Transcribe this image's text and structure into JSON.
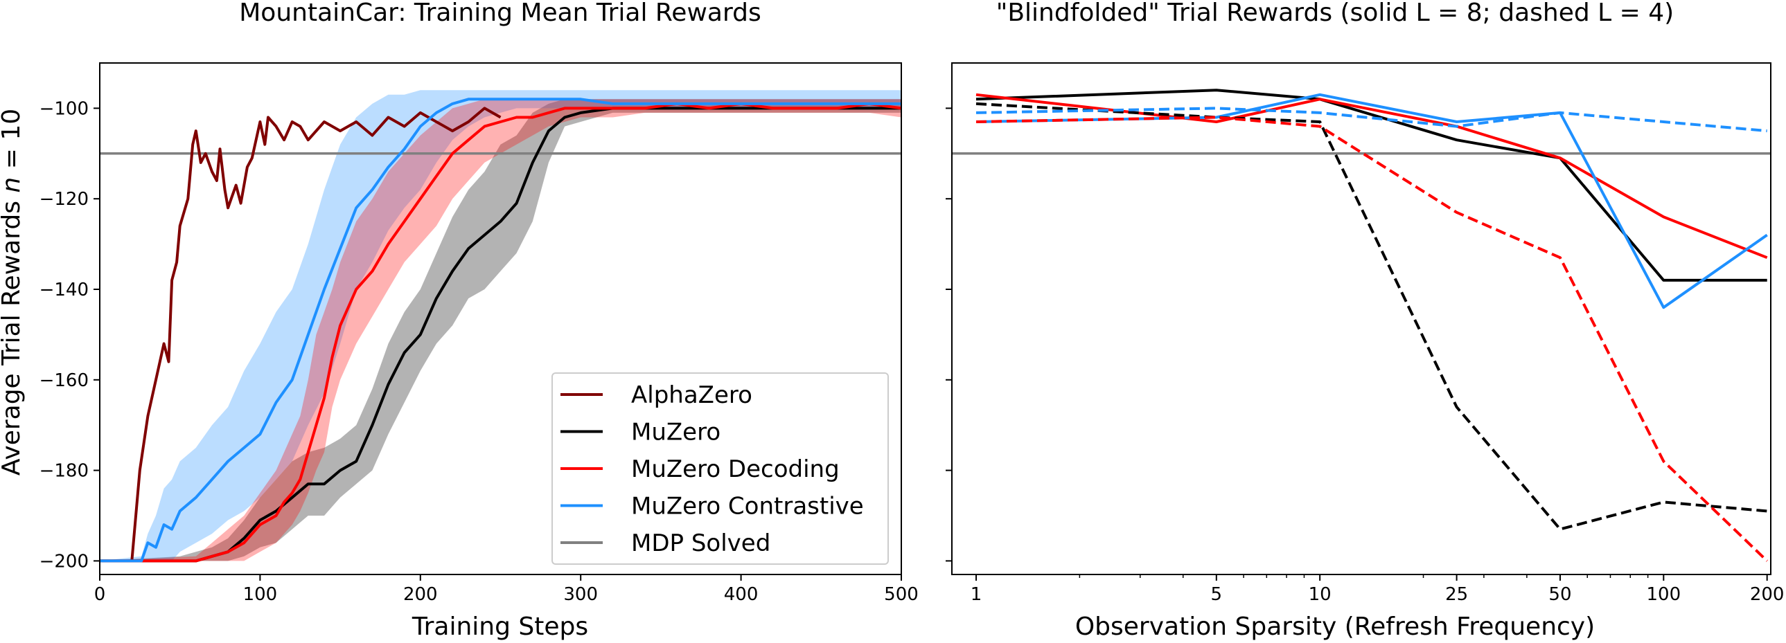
{
  "chart_data": [
    {
      "type": "line",
      "title": "MountainCar: Training Mean Trial Rewards",
      "xlabel": "Training Steps",
      "ylabel": "Average Trial Rewards n = 10",
      "ylabel_parts": [
        "Average Trial Rewards ",
        "n",
        " = 10"
      ],
      "xlim": [
        0,
        500
      ],
      "ylim": [
        -203,
        -90
      ],
      "xticks": [
        0,
        100,
        200,
        300,
        400,
        500
      ],
      "yticks": [
        -200,
        -180,
        -160,
        -140,
        -120,
        -100
      ],
      "legend_position": "lower-right",
      "hline": {
        "name": "MDP Solved",
        "y": -110,
        "color": "#808080"
      },
      "series": [
        {
          "name": "AlphaZero",
          "color": "#800000",
          "x": [
            0,
            20,
            23,
            25,
            30,
            35,
            40,
            43,
            45,
            48,
            50,
            55,
            58,
            60,
            63,
            66,
            70,
            73,
            75,
            78,
            80,
            82,
            85,
            88,
            92,
            95,
            100,
            103,
            105,
            110,
            115,
            120,
            125,
            130,
            140,
            150,
            160,
            170,
            180,
            190,
            200,
            210,
            220,
            230,
            240,
            250
          ],
          "y": [
            -200,
            -200,
            -188,
            -180,
            -168,
            -160,
            -152,
            -156,
            -138,
            -134,
            -126,
            -120,
            -108,
            -105,
            -112,
            -110,
            -114,
            -116,
            -109,
            -118,
            -122,
            -120,
            -117,
            -121,
            -113,
            -111,
            -103,
            -108,
            -102,
            -104,
            -107,
            -103,
            -104,
            -107,
            -103,
            -105,
            -103,
            -106,
            -102,
            -104,
            -101,
            -103,
            -105,
            -103,
            -100,
            -102
          ],
          "band": null
        },
        {
          "name": "MuZero",
          "color": "#000000",
          "x": [
            0,
            50,
            60,
            70,
            80,
            90,
            100,
            110,
            120,
            130,
            140,
            150,
            160,
            170,
            180,
            190,
            200,
            210,
            220,
            230,
            240,
            250,
            260,
            270,
            280,
            290,
            300,
            320,
            340,
            360,
            380,
            400,
            420,
            440,
            460,
            480,
            500
          ],
          "y": [
            -200,
            -200,
            -200,
            -199,
            -198,
            -195,
            -191,
            -189,
            -186,
            -183,
            -183,
            -180,
            -178,
            -170,
            -161,
            -154,
            -150,
            -142,
            -136,
            -131,
            -128,
            -125,
            -121,
            -112,
            -105,
            -102,
            -101,
            -100,
            -100,
            -100,
            -100,
            -100,
            -100,
            -100,
            -100,
            -100,
            -100
          ],
          "band": {
            "lower": [
              -200,
              -200,
              -200,
              -200,
              -200,
              -199,
              -197,
              -196,
              -193,
              -190,
              -190,
              -186,
              -183,
              -180,
              -172,
              -165,
              -158,
              -152,
              -148,
              -142,
              -140,
              -136,
              -132,
              -125,
              -112,
              -104,
              -103,
              -101,
              -101,
              -101,
              -101,
              -101,
              -101,
              -101,
              -101,
              -101,
              -101
            ],
            "upper": [
              -200,
              -199,
              -198,
              -197,
              -195,
              -191,
              -186,
              -182,
              -178,
              -176,
              -175,
              -173,
              -170,
              -162,
              -152,
              -145,
              -140,
              -132,
              -124,
              -118,
              -114,
              -108,
              -106,
              -101,
              -99,
              -98,
              -98,
              -98,
              -98,
              -98,
              -98,
              -98,
              -98,
              -98,
              -98,
              -98,
              -98
            ],
            "color": "#808080"
          }
        },
        {
          "name": "MuZero Decoding",
          "color": "#ff0000",
          "x": [
            0,
            60,
            70,
            80,
            90,
            100,
            110,
            115,
            120,
            125,
            130,
            135,
            140,
            145,
            150,
            160,
            170,
            180,
            190,
            200,
            210,
            220,
            230,
            240,
            250,
            260,
            270,
            280,
            290,
            300,
            320,
            340,
            360,
            380,
            400,
            420,
            440,
            460,
            480,
            500
          ],
          "y": [
            -200,
            -200,
            -199,
            -198,
            -196,
            -192,
            -190,
            -187,
            -185,
            -182,
            -176,
            -170,
            -164,
            -155,
            -148,
            -140,
            -136,
            -130,
            -125,
            -120,
            -115,
            -110,
            -107,
            -104,
            -103,
            -102,
            -102,
            -101,
            -100,
            -100,
            -100,
            -100,
            -99,
            -100,
            -99,
            -100,
            -100,
            -100,
            -99,
            -100
          ],
          "band": {
            "lower": [
              -200,
              -200,
              -200,
              -200,
              -200,
              -198,
              -196,
              -194,
              -192,
              -189,
              -185,
              -180,
              -176,
              -166,
              -160,
              -152,
              -146,
              -140,
              -134,
              -130,
              -126,
              -120,
              -116,
              -112,
              -110,
              -108,
              -106,
              -104,
              -103,
              -102,
              -102,
              -101,
              -101,
              -101,
              -101,
              -101,
              -101,
              -101,
              -101,
              -102
            ],
            "upper": [
              -200,
              -199,
              -196,
              -193,
              -190,
              -185,
              -180,
              -176,
              -172,
              -168,
              -160,
              -150,
              -145,
              -140,
              -134,
              -125,
              -120,
              -114,
              -110,
              -106,
              -103,
              -100,
              -99,
              -98,
              -98,
              -98,
              -98,
              -98,
              -98,
              -98,
              -98,
              -98,
              -98,
              -98,
              -98,
              -98,
              -98,
              -98,
              -98,
              -98
            ],
            "color": "#ff0000"
          }
        },
        {
          "name": "MuZero Contrastive",
          "color": "#1e90ff",
          "x": [
            0,
            26,
            30,
            35,
            40,
            45,
            50,
            60,
            70,
            80,
            90,
            100,
            110,
            120,
            130,
            140,
            150,
            160,
            170,
            180,
            190,
            200,
            210,
            220,
            230,
            240,
            250,
            260,
            280,
            300,
            320,
            340,
            360,
            380,
            400,
            420,
            440,
            460,
            480,
            500
          ],
          "y": [
            -200,
            -200,
            -196,
            -197,
            -192,
            -193,
            -189,
            -186,
            -182,
            -178,
            -175,
            -172,
            -165,
            -160,
            -150,
            -140,
            -131,
            -122,
            -118,
            -113,
            -109,
            -104,
            -101,
            -99,
            -98,
            -98,
            -98,
            -98,
            -98,
            -98,
            -99,
            -99,
            -99,
            -99,
            -99,
            -99,
            -99,
            -99,
            -99,
            -99
          ],
          "band": {
            "lower": [
              -200,
              -200,
              -200,
              -200,
              -200,
              -200,
              -198,
              -196,
              -194,
              -191,
              -189,
              -186,
              -182,
              -178,
              -170,
              -163,
              -152,
              -140,
              -134,
              -127,
              -122,
              -118,
              -112,
              -107,
              -104,
              -102,
              -101,
              -100,
              -100,
              -100,
              -100,
              -100,
              -100,
              -100,
              -100,
              -100,
              -100,
              -100,
              -100,
              -100
            ],
            "upper": [
              -200,
              -199,
              -194,
              -190,
              -184,
              -182,
              -178,
              -175,
              -170,
              -166,
              -158,
              -152,
              -145,
              -140,
              -130,
              -118,
              -108,
              -102,
              -99,
              -97,
              -97,
              -96,
              -96,
              -96,
              -96,
              -96,
              -96,
              -96,
              -96,
              -96,
              -96,
              -96,
              -96,
              -96,
              -96,
              -96,
              -96,
              -96,
              -96,
              -96
            ],
            "color": "#1e90ff"
          }
        }
      ]
    },
    {
      "type": "line",
      "title": "\"Blindfolded\" Trial Rewards (solid L = 8; dashed L = 4)",
      "xlabel": "Observation Sparsity (Refresh Frequency)",
      "ylabel": "",
      "xscale": "log",
      "xlim": [
        0.85,
        205
      ],
      "ylim": [
        -203,
        -90
      ],
      "xticks": [
        1,
        5,
        10,
        25,
        50,
        100,
        200
      ],
      "hline": {
        "y": -110,
        "color": "#808080"
      },
      "series": [
        {
          "color": "#000000",
          "style": "solid",
          "x": [
            1,
            5,
            10,
            25,
            50,
            100,
            200
          ],
          "y": [
            -98,
            -96,
            -98,
            -107,
            -111,
            -138,
            -138
          ]
        },
        {
          "color": "#ff0000",
          "style": "solid",
          "x": [
            1,
            5,
            10,
            25,
            50,
            100,
            200
          ],
          "y": [
            -97,
            -103,
            -98,
            -104,
            -111,
            -124,
            -133
          ]
        },
        {
          "color": "#1e90ff",
          "style": "solid",
          "x": [
            1,
            5,
            10,
            25,
            50,
            100,
            200
          ],
          "y": [
            -103,
            -102,
            -97,
            -103,
            -101,
            -144,
            -128
          ]
        },
        {
          "color": "#000000",
          "style": "dashed",
          "x": [
            1,
            5,
            10,
            25,
            50,
            100,
            200
          ],
          "y": [
            -99,
            -102,
            -103,
            -166,
            -193,
            -187,
            -189
          ]
        },
        {
          "color": "#ff0000",
          "style": "dashed",
          "x": [
            1,
            5,
            10,
            25,
            50,
            100,
            200
          ],
          "y": [
            -103,
            -102,
            -104,
            -123,
            -133,
            -178,
            -200
          ]
        },
        {
          "color": "#1e90ff",
          "style": "dashed",
          "x": [
            1,
            5,
            10,
            25,
            50,
            100,
            200
          ],
          "y": [
            -101,
            -100,
            -101,
            -104,
            -101,
            -103,
            -105
          ]
        }
      ]
    }
  ]
}
